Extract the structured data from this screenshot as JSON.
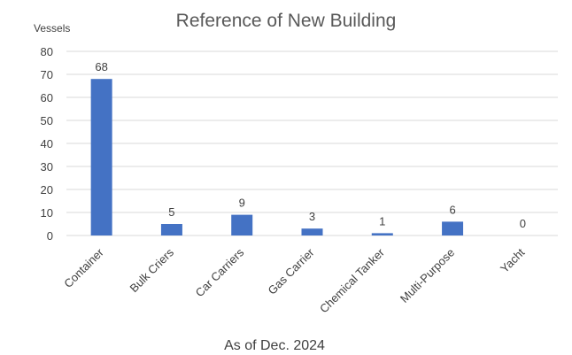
{
  "chart_data": {
    "type": "bar",
    "title": "Reference of New Building",
    "ylabel": "Vessels",
    "xlabel": "",
    "footnote": "As of  Dec. 2024",
    "categories": [
      "Container",
      "Bulk Criers",
      "Car Carriers",
      "Gas Carrier",
      "Chemical Tanker",
      "Multi-Purpose",
      "Yacht"
    ],
    "values": [
      68,
      5,
      9,
      3,
      1,
      6,
      0
    ],
    "ylim": [
      0,
      80
    ],
    "yticks": [
      0,
      10,
      20,
      30,
      40,
      50,
      60,
      70,
      80
    ],
    "grid": true,
    "legend": "none",
    "bar_color": "#4472c4",
    "grid_color": "#d9d9d9"
  }
}
